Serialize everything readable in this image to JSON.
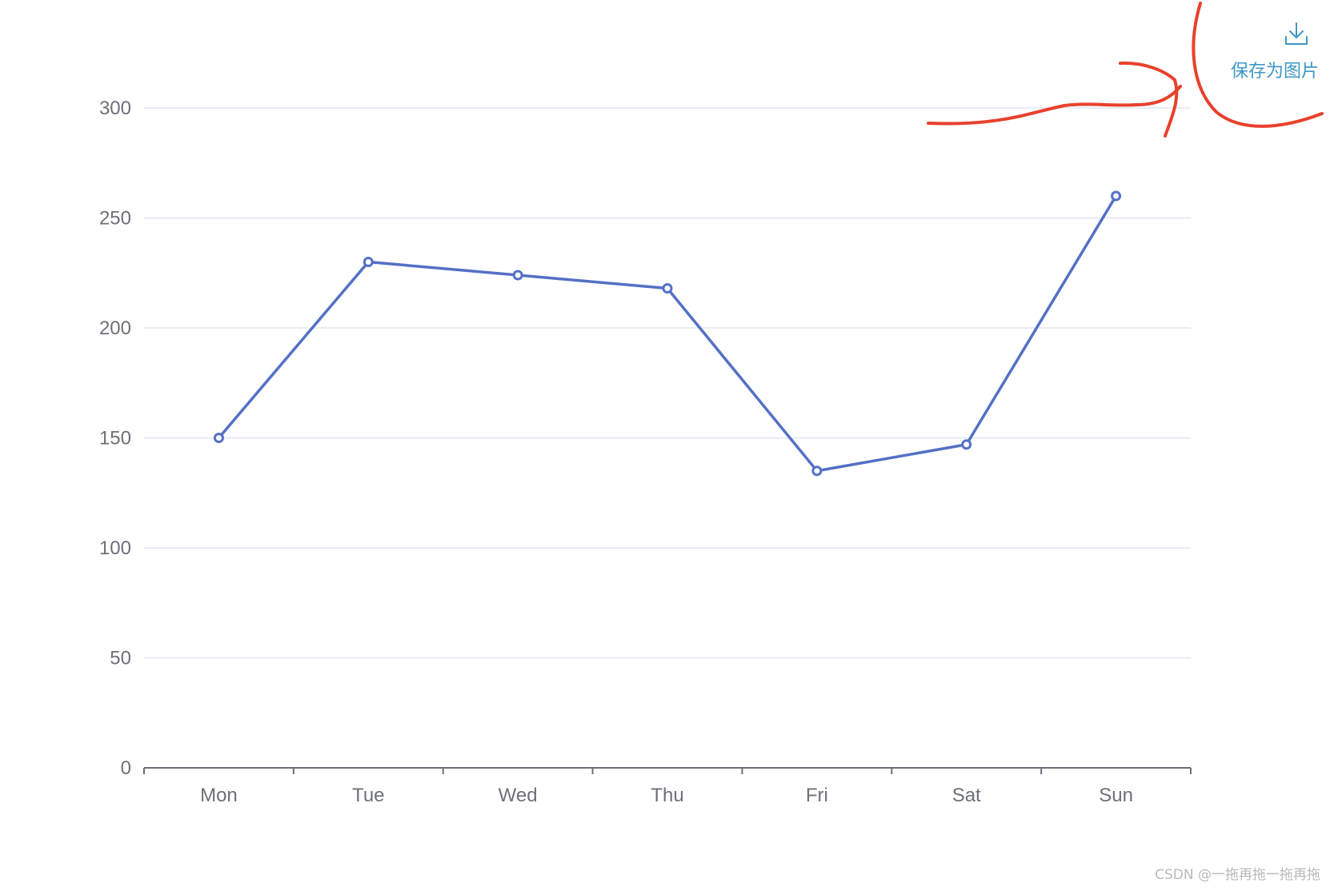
{
  "chart_data": {
    "type": "line",
    "categories": [
      "Mon",
      "Tue",
      "Wed",
      "Thu",
      "Fri",
      "Sat",
      "Sun"
    ],
    "values": [
      150,
      230,
      224,
      218,
      135,
      147,
      260
    ],
    "ylim": [
      0,
      300
    ],
    "yticks": [
      0,
      50,
      100,
      150,
      200,
      250,
      300
    ],
    "grid": true,
    "line_color": "#5470c6"
  },
  "toolbox": {
    "save_label": "保存为图片",
    "icon": "download-icon",
    "color": "#3e98c5"
  },
  "annotation": {
    "color": "#e8412c"
  },
  "watermark": {
    "text": "CSDN @一拖再拖一拖再拖"
  }
}
